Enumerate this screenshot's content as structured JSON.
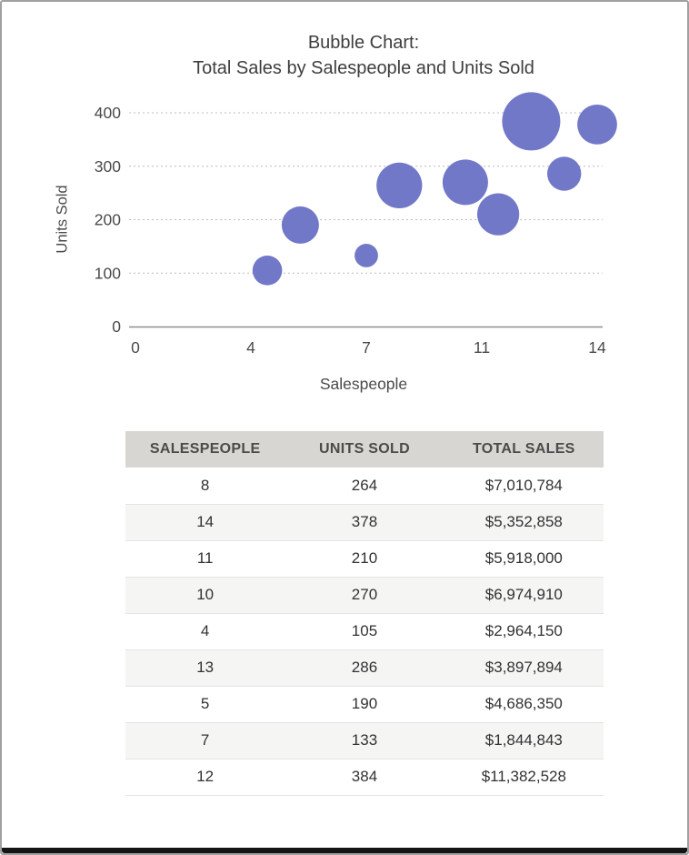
{
  "chart_data": {
    "type": "scatter",
    "subtype": "bubble",
    "title": "Bubble Chart: Total Sales by Salespeople and Units Sold",
    "title_lines": [
      "Bubble Chart:",
      "Total Sales by Salespeople and Units Sold"
    ],
    "xlabel": "Salespeople",
    "ylabel": "Units Sold",
    "xlim": [
      0,
      14
    ],
    "ylim": [
      0,
      400
    ],
    "x_tick_labels": [
      "0",
      "4",
      "7",
      "11",
      "14"
    ],
    "y_tick_values": [
      0,
      100,
      200,
      300,
      400
    ],
    "grid": "horizontal-dotted",
    "legend": "none",
    "bubble_color": "#7278C8",
    "size_encodes": "total_sales",
    "points": [
      {
        "salespeople": 8,
        "units_sold": 264,
        "total_sales": 7010784,
        "total_sales_label": "$7,010,784"
      },
      {
        "salespeople": 14,
        "units_sold": 378,
        "total_sales": 5352858,
        "total_sales_label": "$5,352,858"
      },
      {
        "salespeople": 11,
        "units_sold": 210,
        "total_sales": 5918000,
        "total_sales_label": "$5,918,000"
      },
      {
        "salespeople": 10,
        "units_sold": 270,
        "total_sales": 6974910,
        "total_sales_label": "$6,974,910"
      },
      {
        "salespeople": 4,
        "units_sold": 105,
        "total_sales": 2964150,
        "total_sales_label": "$2,964,150"
      },
      {
        "salespeople": 13,
        "units_sold": 286,
        "total_sales": 3897894,
        "total_sales_label": "$3,897,894"
      },
      {
        "salespeople": 5,
        "units_sold": 190,
        "total_sales": 4686350,
        "total_sales_label": "$4,686,350"
      },
      {
        "salespeople": 7,
        "units_sold": 133,
        "total_sales": 1844843,
        "total_sales_label": "$1,844,843"
      },
      {
        "salespeople": 12,
        "units_sold": 384,
        "total_sales": 11382528,
        "total_sales_label": "$11,382,528"
      }
    ]
  },
  "table": {
    "headers": [
      "SALESPEOPLE",
      "UNITS SOLD",
      "TOTAL SALES"
    ],
    "rows": [
      [
        "8",
        "264",
        "$7,010,784"
      ],
      [
        "14",
        "378",
        "$5,352,858"
      ],
      [
        "11",
        "210",
        "$5,918,000"
      ],
      [
        "10",
        "270",
        "$6,974,910"
      ],
      [
        "4",
        "105",
        "$2,964,150"
      ],
      [
        "13",
        "286",
        "$3,897,894"
      ],
      [
        "5",
        "190",
        "$4,686,350"
      ],
      [
        "7",
        "133",
        "$1,844,843"
      ],
      [
        "12",
        "384",
        "$11,382,528"
      ]
    ]
  },
  "colors": {
    "bubble": "#7278C8",
    "gridline": "#bcbcbc",
    "axis_line": "#8f8f8f",
    "axis_text": "#4a4a4a",
    "title_text": "#3e3e3e",
    "table_header_bg": "#d7d6d2",
    "table_zebra": "#f5f5f4"
  }
}
